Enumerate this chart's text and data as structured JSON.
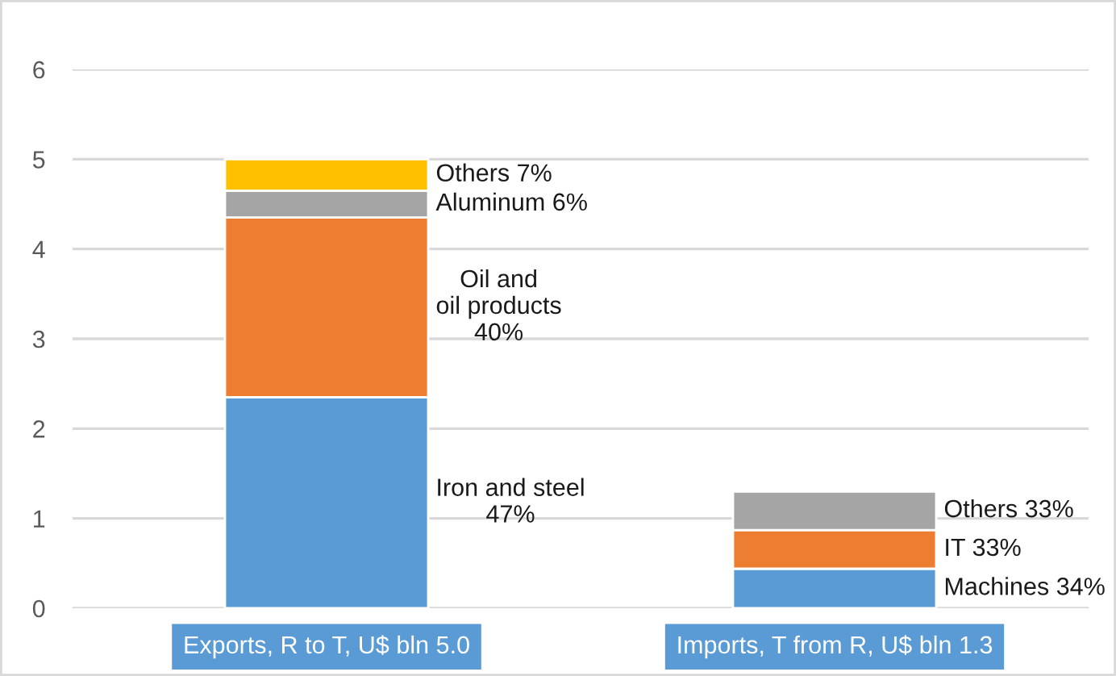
{
  "chart_data": {
    "type": "bar",
    "stacked": true,
    "categories": [
      "Exports, R to T, U$ bln 5.0",
      "Imports, T from R, U$ bln 1.3"
    ],
    "series": [
      {
        "color": "#5b9bd5",
        "values": [
          2.35,
          0.44
        ]
      },
      {
        "color": "#ed7d31",
        "values": [
          2.0,
          0.43
        ]
      },
      {
        "color": "#a5a5a5",
        "values": [
          0.3,
          0.43
        ]
      },
      {
        "color": "#ffc000",
        "values": [
          0.35,
          null
        ]
      }
    ],
    "ylim": [
      0,
      6
    ],
    "yticks": [
      0,
      1,
      2,
      3,
      4,
      5,
      6
    ],
    "grid": "y",
    "legend": false,
    "annotations": [
      "Iron and steel\n47%",
      "Oil and\noil products\n40%",
      "Aluminum 6%",
      "Others 7%",
      "Machines 34%",
      "IT 33%",
      "Others 33%"
    ]
  }
}
